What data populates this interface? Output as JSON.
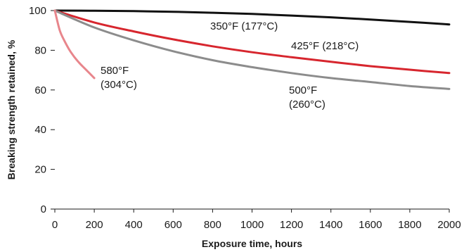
{
  "chart_data": {
    "type": "line",
    "title": "",
    "xlabel": "Exposure time, hours",
    "ylabel": "Breaking strength retained, %",
    "xlim": [
      0,
      2000
    ],
    "ylim": [
      0,
      100
    ],
    "xticks": [
      0,
      200,
      400,
      600,
      800,
      1000,
      1200,
      1400,
      1600,
      1800,
      2000
    ],
    "yticks": [
      0,
      20,
      40,
      60,
      80,
      100
    ],
    "grid": false,
    "legend": "none (series labeled directly on the plot)",
    "series": [
      {
        "name": "350°F (177°C)",
        "label_lines": [
          "350°F (177°C)"
        ],
        "color": "#111111",
        "x": [
          0,
          200,
          400,
          600,
          800,
          1000,
          1200,
          1400,
          1600,
          1800,
          2000
        ],
        "y": [
          100,
          99.9,
          99.7,
          99.4,
          98.9,
          98.3,
          97.5,
          96.6,
          95.5,
          94.3,
          93
        ]
      },
      {
        "name": "425°F (218°C)",
        "label_lines": [
          "425°F (218°C)"
        ],
        "color": "#d7262e",
        "x": [
          0,
          200,
          400,
          600,
          800,
          1000,
          1200,
          1400,
          1600,
          1800,
          2000
        ],
        "y": [
          100,
          94,
          89.5,
          85.5,
          82,
          79,
          76.5,
          74.2,
          72,
          70.2,
          68.5
        ]
      },
      {
        "name": "500°F (260°C)",
        "label_lines": [
          "500°F",
          "(260°C)"
        ],
        "color": "#8c8c8c",
        "x": [
          0,
          200,
          400,
          600,
          800,
          1000,
          1200,
          1400,
          1600,
          1800,
          2000
        ],
        "y": [
          100,
          91.5,
          85,
          79.5,
          75,
          71.5,
          68.5,
          66,
          64,
          62,
          60.5
        ]
      },
      {
        "name": "580°F (304°C)",
        "label_lines": [
          "580°F",
          "(304°C)"
        ],
        "color": "#e8868c",
        "x": [
          0,
          25,
          50,
          75,
          100,
          125,
          150,
          175,
          200
        ],
        "y": [
          100,
          90,
          84.5,
          80,
          76.5,
          73.5,
          71,
          68.5,
          66
        ]
      }
    ]
  }
}
